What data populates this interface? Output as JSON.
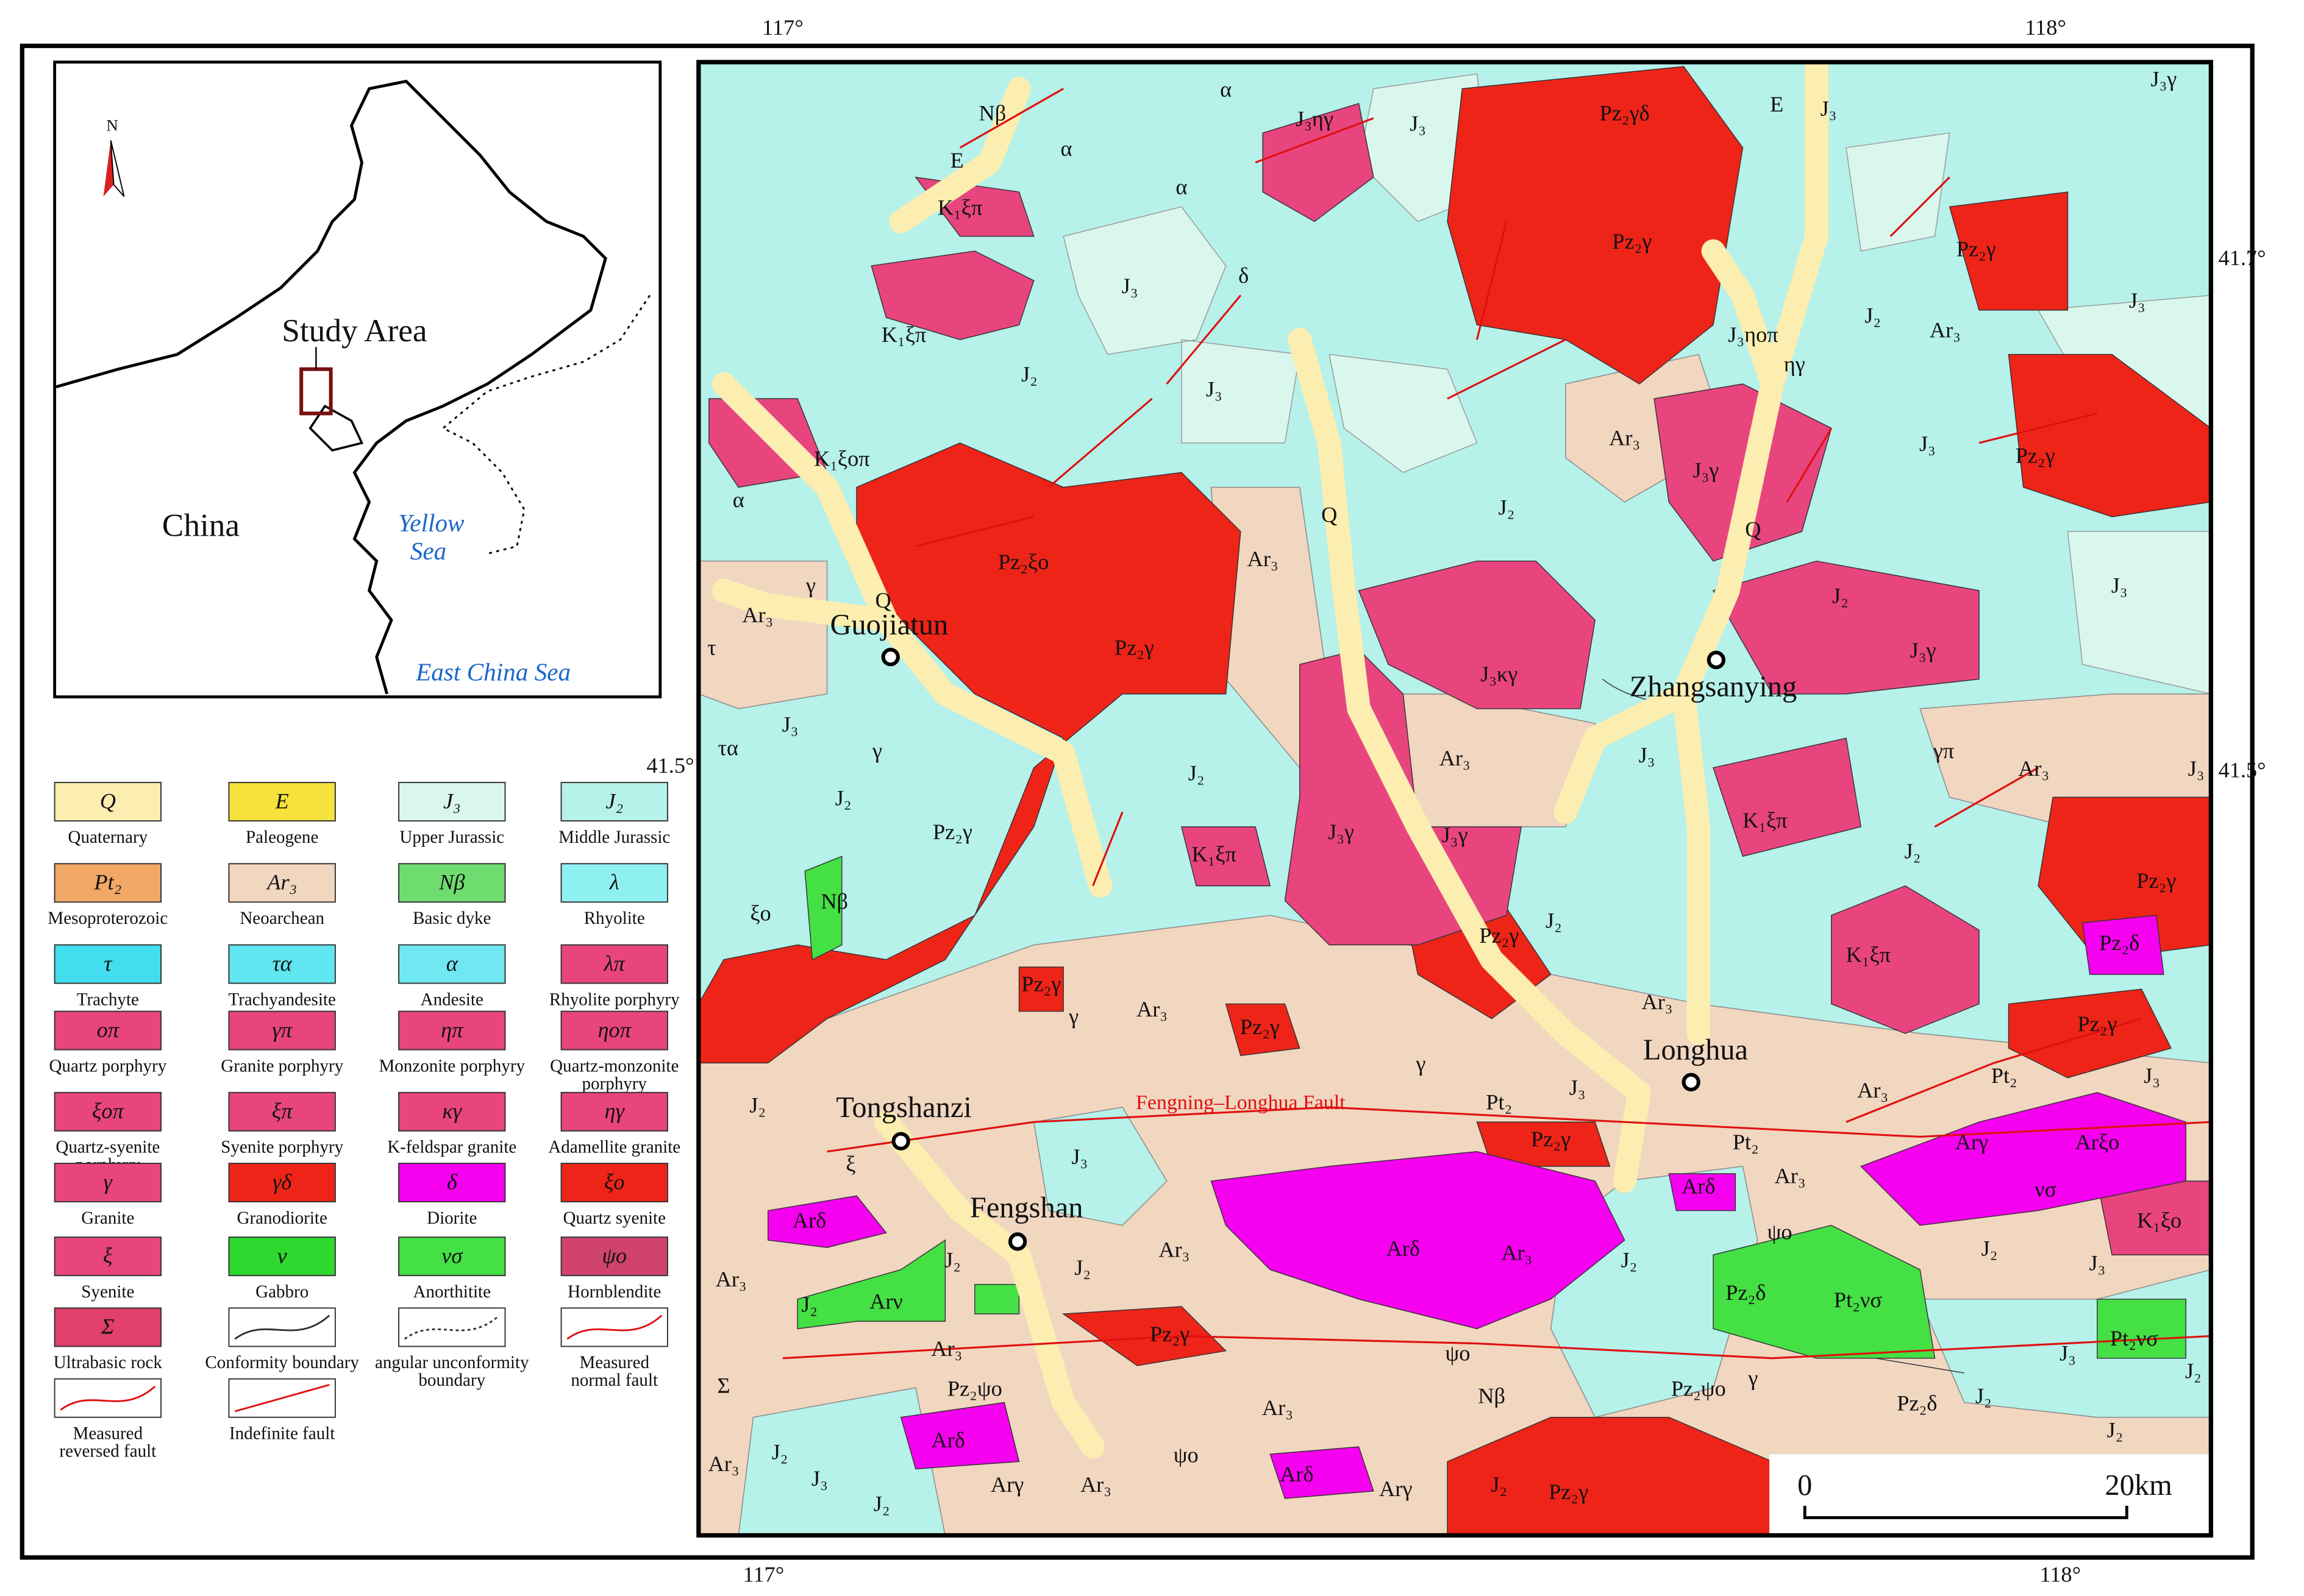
{
  "coordinates": {
    "top": [
      "117°",
      "118°"
    ],
    "bottom": [
      "117°",
      "118°"
    ],
    "left": [
      "41.5°"
    ],
    "right": [
      "41.7°",
      "41.5°"
    ]
  },
  "inset": {
    "north": "N",
    "study_area": "Study Area",
    "china": "China",
    "yellow_sea": [
      "Yellow",
      "Sea"
    ],
    "east_china_sea": "East China Sea"
  },
  "places": [
    "Guojiatun",
    "Zhangsanying",
    "Tongshanzi",
    "Fengshan",
    "Longhua"
  ],
  "fault_name": "Fengning–Longhua Fault",
  "scale_bar": {
    "start": "0",
    "end": "20km"
  },
  "legend": [
    {
      "symbol": "Q",
      "label": [
        "Quaternary"
      ],
      "color": "#fbeeb0"
    },
    {
      "symbol": "E",
      "label": [
        "Paleogene"
      ],
      "color": "#f6e23c"
    },
    {
      "symbol": "J₃",
      "label": [
        "Upper Jurassic"
      ],
      "color": "#daf7ee"
    },
    {
      "symbol": "J₂",
      "label": [
        "Middle Jurassic"
      ],
      "color": "#b6f1ea"
    },
    {
      "symbol": "Pt₂",
      "label": [
        "Mesoproterozoic"
      ],
      "color": "#f2a866"
    },
    {
      "symbol": "Ar₃",
      "label": [
        "Neoarchean"
      ],
      "color": "#f1d6c0"
    },
    {
      "symbol": "Nβ",
      "label": [
        "Basic dyke"
      ],
      "color": "#6fdc6f"
    },
    {
      "symbol": "λ",
      "label": [
        "Rhyolite"
      ],
      "color": "#8ff0f2"
    },
    {
      "symbol": "τ",
      "label": [
        "Trachyte"
      ],
      "color": "#42def0"
    },
    {
      "symbol": "τα",
      "label": [
        "Trachyandesite"
      ],
      "color": "#5fe6f0"
    },
    {
      "symbol": "α",
      "label": [
        "Andesite"
      ],
      "color": "#6fe8f2"
    },
    {
      "symbol": "λπ",
      "label": [
        "Rhyolite porphyry"
      ],
      "color": "#e8457f"
    },
    {
      "symbol": "oπ",
      "label": [
        "Quartz porphyry"
      ],
      "color": "#e8457f"
    },
    {
      "symbol": "γπ",
      "label": [
        "Granite porphyry"
      ],
      "color": "#e8457f"
    },
    {
      "symbol": "ηπ",
      "label": [
        "Monzonite porphyry"
      ],
      "color": "#e8457f"
    },
    {
      "symbol": "ηoπ",
      "label": [
        "Quartz-monzonite",
        "porphyry"
      ],
      "color": "#e8457f"
    },
    {
      "symbol": "ξoπ",
      "label": [
        "Quartz-syenite",
        "porphyry"
      ],
      "color": "#e8457f"
    },
    {
      "symbol": "ξπ",
      "label": [
        "Syenite porphyry"
      ],
      "color": "#e8457f"
    },
    {
      "symbol": "κγ",
      "label": [
        "K-feldspar granite"
      ],
      "color": "#e8457f"
    },
    {
      "symbol": "ηγ",
      "label": [
        "Adamellite granite"
      ],
      "color": "#e8457f"
    },
    {
      "symbol": "γ",
      "label": [
        "Granite"
      ],
      "color": "#e8457f"
    },
    {
      "symbol": "γδ",
      "label": [
        "Granodiorite"
      ],
      "color": "#ee2418"
    },
    {
      "symbol": "δ",
      "label": [
        "Diorite"
      ],
      "color": "#f600f0"
    },
    {
      "symbol": "ξo",
      "label": [
        "Quartz syenite"
      ],
      "color": "#ee2418"
    },
    {
      "symbol": "ξ",
      "label": [
        "Syenite"
      ],
      "color": "#e8457f"
    },
    {
      "symbol": "ν",
      "label": [
        "Gabbro"
      ],
      "color": "#2ed82e"
    },
    {
      "symbol": "νσ",
      "label": [
        "Anorthitite"
      ],
      "color": "#44e044"
    },
    {
      "symbol": "ψo",
      "label": [
        "Hornblendite"
      ],
      "color": "#d0436e"
    },
    {
      "symbol": "Σ",
      "label": [
        "Ultrabasic rock"
      ],
      "color": "#e0406a"
    },
    {
      "label": [
        "Conformity boundary"
      ]
    },
    {
      "label": [
        "angular unconformity",
        "boundary"
      ]
    },
    {
      "label": [
        "Measured",
        "normal fault"
      ]
    },
    {
      "label": [
        "Measured",
        "reversed fault"
      ]
    },
    {
      "label": [
        "Indefinite fault"
      ]
    }
  ],
  "map_labels": [
    "Nβ",
    "E",
    "K₁ξπ",
    "K₁ξπ",
    "α",
    "α",
    "α",
    "J₃ηγ",
    "J₃",
    "Pz₂γδ",
    "E",
    "J₃",
    "J₃γ",
    "Pz₂γ",
    "δ",
    "J₃",
    "J₂",
    "J₃",
    "J₃ηoπ",
    "ηγ",
    "J₂",
    "Ar₃",
    "Pz₂γ",
    "J₃",
    "K₁ξoπ",
    "α",
    "Q",
    "Ar₃",
    "J₃γ",
    "J₃",
    "Pz₂γ",
    "J₂",
    "Q",
    "Pz₂ξo",
    "Ar₃",
    "γ",
    "Ar₃",
    "Q",
    "Pz₂γ",
    "τ",
    "J₂",
    "J₃",
    "J₃κγ",
    "J₃γ",
    "τα",
    "J₃",
    "γ",
    "J₂",
    "Ar₃",
    "J₃",
    "γπ",
    "Ar₃",
    "J₃",
    "J₂",
    "J₃γ",
    "J₃γ",
    "K₁ξπ",
    "K₁ξπ",
    "J₂",
    "Pz₂γ",
    "Nβ",
    "ξo",
    "Pz₂γ",
    "J₂",
    "Pz₂γ",
    "Pz₂δ",
    "K₁ξπ",
    "Pz₂γ",
    "Ar₃",
    "Pz₂γ",
    "Ar₃",
    "Pz₂γ",
    "γ",
    "γ",
    "Pt₂",
    "J₃",
    "Ar₃",
    "Pt₂",
    "J₃",
    "Arγ",
    "Arξo",
    "J₂",
    "Pz₂γ",
    "Pt₂",
    "J₃",
    "Ar₃",
    "Arδ",
    "ξ",
    "Arδ",
    "νσ",
    "K₁ξo",
    "ψo",
    "Ar₃",
    "Arδ",
    "Ar₃",
    "J₂",
    "J₂",
    "J₂",
    "Ar₃",
    "J₂",
    "J₃",
    "Arν",
    "J₂",
    "Pz₂δ",
    "Pt₂νσ",
    "Ar₃",
    "Pz₂γ",
    "Pt₂νσ",
    "J₃",
    "J₂",
    "Σ",
    "Pz₂ψo",
    "ψo",
    "Nβ",
    "Pz₂ψo",
    "γ",
    "Ar₃",
    "J₂",
    "Pz₂δ",
    "Arδ",
    "J₂",
    "ψo",
    "Ar₃",
    "J₂",
    "J₃",
    "Arγ",
    "Ar₃",
    "Arδ",
    "Arγ",
    "J₂",
    "Pz₂γ",
    "J₂"
  ]
}
